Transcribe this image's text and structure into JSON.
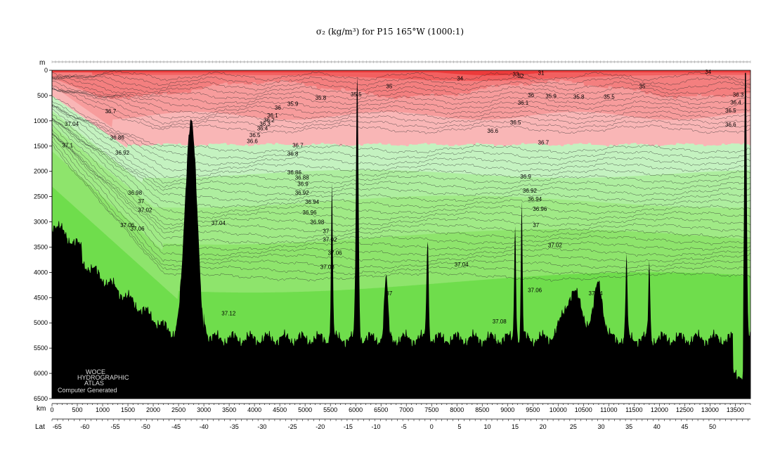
{
  "chart_data": {
    "type": "area",
    "title": "σ₂ (kg/m³) for P15 165°W (1000:1)",
    "xlabel": "km",
    "ylabel": "m",
    "second_xlabel": "Lat",
    "xlim": [
      0,
      13800
    ],
    "ylim": [
      6500,
      0
    ],
    "x_ticks": [
      0,
      500,
      1000,
      1500,
      2000,
      2500,
      3000,
      3500,
      4000,
      4500,
      5000,
      5500,
      6000,
      6500,
      7000,
      7500,
      8000,
      8500,
      9000,
      9500,
      10000,
      10500,
      11000,
      11500,
      12000,
      12500,
      13000,
      13500
    ],
    "y_ticks": [
      0,
      500,
      1000,
      1500,
      2000,
      2500,
      3000,
      3500,
      4000,
      4500,
      5000,
      5500,
      6000,
      6500
    ],
    "lat_ticks": [
      {
        "label": "-65",
        "km": 100
      },
      {
        "label": "-60",
        "km": 650
      },
      {
        "label": "-55",
        "km": 1250
      },
      {
        "label": "-50",
        "km": 1850
      },
      {
        "label": "-45",
        "km": 2450
      },
      {
        "label": "-40",
        "km": 3000
      },
      {
        "label": "-35",
        "km": 3600
      },
      {
        "label": "-30",
        "km": 4150
      },
      {
        "label": "-25",
        "km": 4750
      },
      {
        "label": "-20",
        "km": 5300
      },
      {
        "label": "-15",
        "km": 5850
      },
      {
        "label": "-10",
        "km": 6400
      },
      {
        "label": "-5",
        "km": 6950
      },
      {
        "label": "0",
        "km": 7500
      },
      {
        "label": "5",
        "km": 8050
      },
      {
        "label": "10",
        "km": 8600
      },
      {
        "label": "15",
        "km": 9150
      },
      {
        "label": "20",
        "km": 9700
      },
      {
        "label": "25",
        "km": 10300
      },
      {
        "label": "30",
        "km": 10850
      },
      {
        "label": "35",
        "km": 11400
      },
      {
        "label": "40",
        "km": 11950
      },
      {
        "label": "45",
        "km": 12500
      },
      {
        "label": "50",
        "km": 13050
      }
    ],
    "color_bands": [
      {
        "range": "< 34",
        "color": "#ec3b3b"
      },
      {
        "range": "34 - 35",
        "color": "#f26060"
      },
      {
        "range": "35 - 36",
        "color": "#f47f7f"
      },
      {
        "range": "36 - 36.5",
        "color": "#f79c9c"
      },
      {
        "range": "36.5 - 36.7",
        "color": "#f9b6b6"
      },
      {
        "range": "36.7 - 36.9",
        "color": "#c4f2c0"
      },
      {
        "range": "36.9 - 37",
        "color": "#aeee9f"
      },
      {
        "range": "37 - 37.04",
        "color": "#a0ea86"
      },
      {
        "range": "37.04 - 37.08",
        "color": "#8ee46c"
      },
      {
        "range": "> 37.08",
        "color": "#6fdd4c"
      }
    ],
    "contour_labels": [
      {
        "text": "33",
        "km": 9100,
        "depth": 80
      },
      {
        "text": "32",
        "km": 9200,
        "depth": 110
      },
      {
        "text": "31",
        "km": 9600,
        "depth": 50
      },
      {
        "text": "34",
        "km": 8000,
        "depth": 160
      },
      {
        "text": "34",
        "km": 12900,
        "depth": 30
      },
      {
        "text": "35",
        "km": 6600,
        "depth": 310
      },
      {
        "text": "35",
        "km": 11600,
        "depth": 310
      },
      {
        "text": "35.5",
        "km": 5900,
        "depth": 470
      },
      {
        "text": "35.5",
        "km": 10900,
        "depth": 520
      },
      {
        "text": "35.8",
        "km": 5200,
        "depth": 540
      },
      {
        "text": "35.8",
        "km": 10300,
        "depth": 520
      },
      {
        "text": "35.9",
        "km": 4650,
        "depth": 660
      },
      {
        "text": "35.9",
        "km": 9750,
        "depth": 510
      },
      {
        "text": "36",
        "km": 9400,
        "depth": 490
      },
      {
        "text": "36",
        "km": 4400,
        "depth": 740
      },
      {
        "text": "36.1",
        "km": 9200,
        "depth": 640
      },
      {
        "text": "36.1",
        "km": 4250,
        "depth": 890
      },
      {
        "text": "36.2",
        "km": 4180,
        "depth": 980
      },
      {
        "text": "36.3",
        "km": 4100,
        "depth": 1060
      },
      {
        "text": "36.4",
        "km": 4050,
        "depth": 1150
      },
      {
        "text": "36.5",
        "km": 3900,
        "depth": 1280
      },
      {
        "text": "36.5",
        "km": 9050,
        "depth": 1030
      },
      {
        "text": "36.6",
        "km": 3850,
        "depth": 1400
      },
      {
        "text": "36.6",
        "km": 8600,
        "depth": 1200
      },
      {
        "text": "36.6",
        "km": 13300,
        "depth": 1070
      },
      {
        "text": "36.7",
        "km": 1050,
        "depth": 810
      },
      {
        "text": "36.7",
        "km": 4750,
        "depth": 1480
      },
      {
        "text": "36.7",
        "km": 9600,
        "depth": 1430
      },
      {
        "text": "36.4",
        "km": 13400,
        "depth": 630
      },
      {
        "text": "36.5",
        "km": 13300,
        "depth": 790
      },
      {
        "text": "36.3",
        "km": 13450,
        "depth": 480
      },
      {
        "text": "37.04",
        "km": 250,
        "depth": 1060
      },
      {
        "text": "37.1",
        "km": 200,
        "depth": 1480
      },
      {
        "text": "36.86",
        "km": 1150,
        "depth": 1330
      },
      {
        "text": "36.92",
        "km": 1250,
        "depth": 1630
      },
      {
        "text": "36.98",
        "km": 1500,
        "depth": 2420
      },
      {
        "text": "37",
        "km": 1700,
        "depth": 2590
      },
      {
        "text": "37.02",
        "km": 1700,
        "depth": 2760
      },
      {
        "text": "37.06",
        "km": 1350,
        "depth": 3060
      },
      {
        "text": "37.06",
        "km": 1550,
        "depth": 3130
      },
      {
        "text": "37.04",
        "km": 3150,
        "depth": 3020
      },
      {
        "text": "37.12",
        "km": 3350,
        "depth": 4810
      },
      {
        "text": "36.8",
        "km": 4650,
        "depth": 1650
      },
      {
        "text": "36.86",
        "km": 4650,
        "depth": 2020
      },
      {
        "text": "36.88",
        "km": 4800,
        "depth": 2120
      },
      {
        "text": "36.9",
        "km": 4850,
        "depth": 2250
      },
      {
        "text": "36.92",
        "km": 4800,
        "depth": 2420
      },
      {
        "text": "36.94",
        "km": 5000,
        "depth": 2600
      },
      {
        "text": "36.96",
        "km": 4950,
        "depth": 2810
      },
      {
        "text": "36.98",
        "km": 5100,
        "depth": 3000
      },
      {
        "text": "37",
        "km": 5350,
        "depth": 3180
      },
      {
        "text": "37.02",
        "km": 5350,
        "depth": 3350
      },
      {
        "text": "37.06",
        "km": 5450,
        "depth": 3610
      },
      {
        "text": "37.08",
        "km": 5300,
        "depth": 3890
      },
      {
        "text": "37",
        "km": 6600,
        "depth": 4410
      },
      {
        "text": "37.04",
        "km": 7950,
        "depth": 3840
      },
      {
        "text": "37.08",
        "km": 8700,
        "depth": 4970
      },
      {
        "text": "37.06",
        "km": 9400,
        "depth": 4350
      },
      {
        "text": "37.04",
        "km": 10600,
        "depth": 4410
      },
      {
        "text": "37.02",
        "km": 9800,
        "depth": 3460
      },
      {
        "text": "37",
        "km": 9500,
        "depth": 3060
      },
      {
        "text": "36.96",
        "km": 9500,
        "depth": 2740
      },
      {
        "text": "36.94",
        "km": 9400,
        "depth": 2550
      },
      {
        "text": "36.92",
        "km": 9300,
        "depth": 2380
      },
      {
        "text": "36.9",
        "km": 9250,
        "depth": 2100
      }
    ]
  },
  "stamp": {
    "line1": "WOCE",
    "line2": "HYDROGRAPHIC",
    "line3": "ATLAS",
    "line4": "Computer Generated"
  }
}
